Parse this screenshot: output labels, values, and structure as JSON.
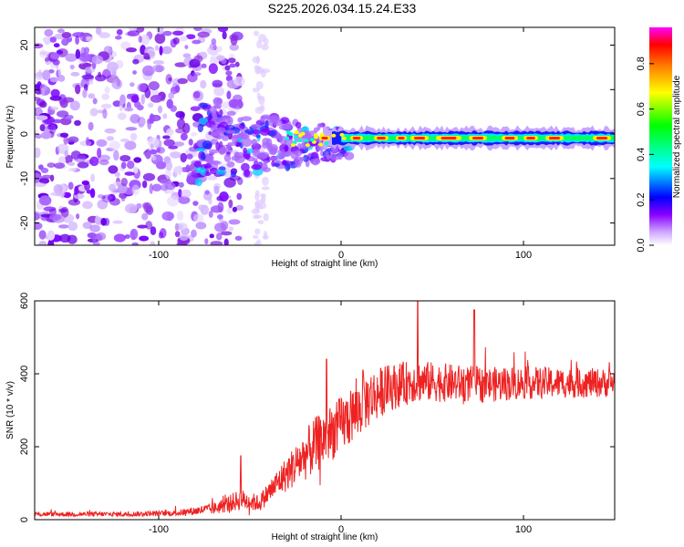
{
  "title": "S225.2026.034.15.24.E33",
  "chart_data": [
    {
      "type": "heatmap",
      "xlabel": "Height of straight line (km)",
      "ylabel": "Frequency (Hz)",
      "xlim": [
        -168,
        150
      ],
      "ylim": [
        -25,
        24
      ],
      "xticks": [
        -100,
        0,
        100
      ],
      "yticks": [
        -20,
        -10,
        0,
        10,
        20
      ],
      "colorbar": {
        "label": "Normalized spectral amplitude",
        "range": [
          0,
          0.96
        ],
        "ticks": [
          0.0,
          0.2,
          0.4,
          0.6,
          0.8
        ],
        "tick_labels": [
          "0.0",
          "0.2",
          "0.4",
          "0.6",
          "0.8"
        ],
        "colormap": [
          "#ffffff",
          "#8a00ff",
          "#0000ff",
          "#00ffff",
          "#00ff00",
          "#ffff00",
          "#ff8000",
          "#ff0000",
          "#ff00ff"
        ]
      },
      "features": [
        {
          "description": "scattered noise",
          "x_range": [
            -168,
            -80
          ],
          "y_range": [
            -25,
            24
          ],
          "level": 0.12
        },
        {
          "description": "transition",
          "x_range": [
            -80,
            0
          ],
          "y_range": [
            -8,
            5
          ],
          "level": 0.3
        },
        {
          "description": "signal band",
          "x_range": [
            0,
            150
          ],
          "y_center": -1,
          "level": 0.9
        }
      ]
    },
    {
      "type": "line",
      "xlabel": "Height of straight line (km)",
      "ylabel": "SNR (10 * v/v)",
      "xlim": [
        -168,
        150
      ],
      "ylim": [
        0,
        600
      ],
      "xticks": [
        -100,
        0,
        100
      ],
      "yticks": [
        0,
        200,
        400,
        600
      ],
      "series": [
        {
          "name": "SNR",
          "color": "#ee2222",
          "envelope": {
            "x": [
              -168,
              -120,
              -90,
              -70,
              -55,
              -45,
              -35,
              -25,
              -15,
              -5,
              5,
              15,
              25,
              40,
              60,
              80,
              100,
              120,
              150
            ],
            "mean": [
              15,
              15,
              18,
              30,
              55,
              45,
              100,
              150,
              200,
              240,
              280,
              330,
              360,
              380,
              375,
              370,
              375,
              375,
              375
            ],
            "spread": [
              10,
              10,
              12,
              25,
              45,
              35,
              60,
              90,
              120,
              120,
              120,
              120,
              100,
              90,
              80,
              75,
              70,
              65,
              60
            ]
          },
          "peaks": [
            {
              "x": -55,
              "y": 175
            },
            {
              "x": -8,
              "y": 440
            },
            {
              "x": 12,
              "y": 410
            },
            {
              "x": 42,
              "y": 600
            },
            {
              "x": 73,
              "y": 575
            }
          ]
        }
      ]
    }
  ]
}
